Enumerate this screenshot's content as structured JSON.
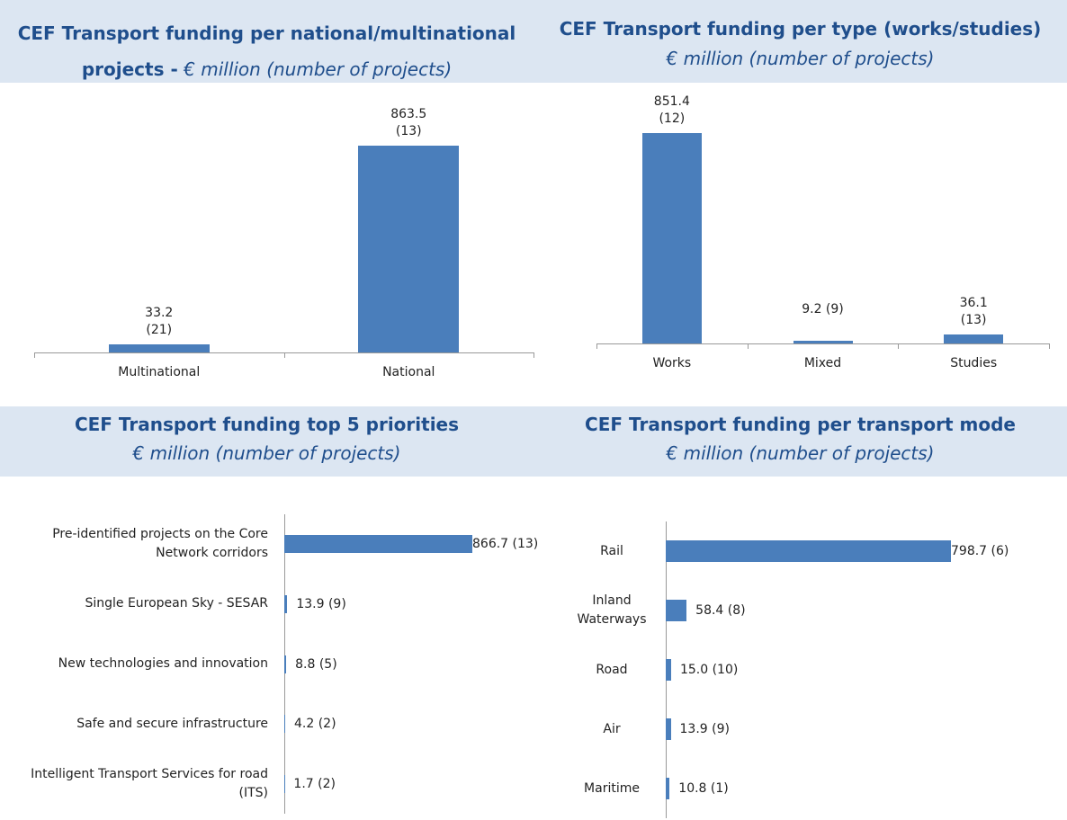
{
  "chart_data": [
    {
      "type": "bar",
      "orientation": "vertical",
      "title": "CEF Transport funding per national/multinational projects -",
      "subtitle": "€ million (number of projects)",
      "categories": [
        "Multinational",
        "National"
      ],
      "values": [
        33.2,
        863.5
      ],
      "value_labels": [
        "33.2 (21)",
        "863.5 (13)"
      ],
      "color": "#4a7ebb"
    },
    {
      "type": "bar",
      "orientation": "vertical",
      "title": "CEF Transport funding per type (works/studies)",
      "subtitle": "€ million (number of projects)",
      "categories": [
        "Works",
        "Mixed",
        "Studies"
      ],
      "values": [
        851.4,
        9.2,
        36.1
      ],
      "value_labels": [
        "851.4 (12)",
        "9.2 (9)",
        "36.1 (13)"
      ],
      "color": "#4a7ebb"
    },
    {
      "type": "bar",
      "orientation": "horizontal",
      "title": "CEF Transport funding top 5 priorities",
      "subtitle": "€ million (number of projects)",
      "categories": [
        "Pre-identified projects on the Core Network corridors",
        "Single European Sky - SESAR",
        "New technologies and innovation",
        "Safe and secure infrastructure",
        "Intelligent Transport Services for road (ITS)"
      ],
      "values": [
        866.7,
        13.9,
        8.8,
        4.2,
        1.7
      ],
      "value_labels": [
        "866.7 (13)",
        "13.9 (9)",
        "8.8 (5)",
        "4.2 (2)",
        "1.7 (2)"
      ],
      "color": "#4a7ebb"
    },
    {
      "type": "bar",
      "orientation": "horizontal",
      "title": "CEF Transport funding per transport mode",
      "subtitle": "€ million (number of projects)",
      "categories": [
        "Rail",
        "Inland Waterways",
        "Road",
        "Air",
        "Maritime"
      ],
      "values": [
        798.7,
        58.4,
        15.0,
        13.9,
        10.8
      ],
      "value_labels": [
        "798.7 (6)",
        "58.4 (8)",
        "15.0 (10)",
        "13.9 (9)",
        "10.8 (1)"
      ],
      "color": "#4a7ebb"
    }
  ]
}
